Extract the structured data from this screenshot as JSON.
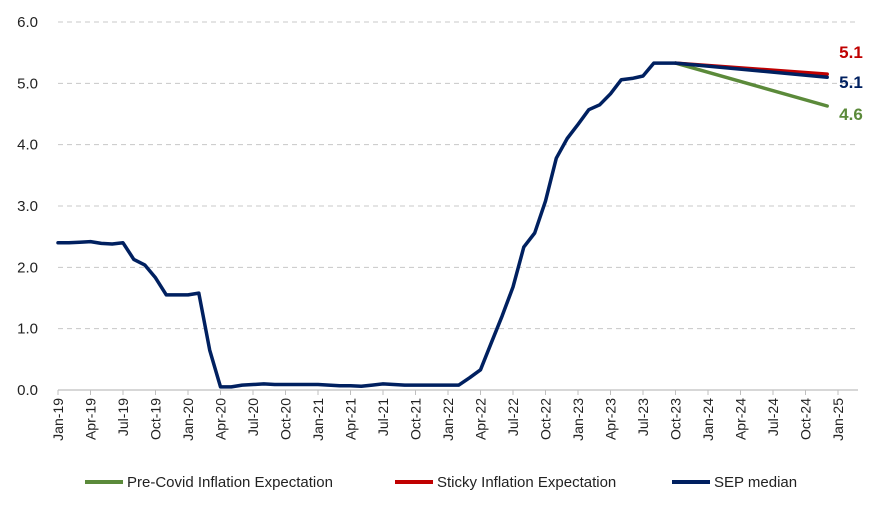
{
  "chart_data": {
    "type": "line",
    "title": "",
    "xlabel": "",
    "ylabel": "",
    "ylim": [
      0,
      6
    ],
    "yticks": [
      "0.0",
      "1.0",
      "2.0",
      "3.0",
      "4.0",
      "5.0",
      "6.0"
    ],
    "xticks": [
      "Jan-19",
      "Apr-19",
      "Jul-19",
      "Oct-19",
      "Jan-20",
      "Apr-20",
      "Jul-20",
      "Oct-20",
      "Jan-21",
      "Apr-21",
      "Jul-21",
      "Oct-21",
      "Jan-22",
      "Apr-22",
      "Jul-22",
      "Oct-22",
      "Jan-23",
      "Apr-23",
      "Jul-23",
      "Oct-23",
      "Jan-24",
      "Apr-24",
      "Jul-24",
      "Oct-24",
      "Jan-25"
    ],
    "grid": "horizontal dashed",
    "legend_position": "bottom",
    "series": [
      {
        "name": "Pre-Covid Inflation Expectation",
        "color": "#5b8a3a",
        "end_label": "4.6",
        "x": [
          "Oct-23",
          "Dec-24"
        ],
        "y": [
          5.33,
          4.63
        ]
      },
      {
        "name": "Sticky Inflation Expectation",
        "color": "#c00000",
        "end_label": "5.1",
        "x": [
          "Oct-23",
          "Dec-24"
        ],
        "y": [
          5.33,
          5.15
        ]
      },
      {
        "name": "SEP median",
        "color": "#002060",
        "end_label": "5.1",
        "x": [
          "Jan-19",
          "Feb-19",
          "Mar-19",
          "Apr-19",
          "May-19",
          "Jun-19",
          "Jul-19",
          "Aug-19",
          "Sep-19",
          "Oct-19",
          "Nov-19",
          "Dec-19",
          "Jan-20",
          "Feb-20",
          "Mar-20",
          "Apr-20",
          "May-20",
          "Jun-20",
          "Jul-20",
          "Aug-20",
          "Sep-20",
          "Oct-20",
          "Nov-20",
          "Dec-20",
          "Jan-21",
          "Feb-21",
          "Mar-21",
          "Apr-21",
          "May-21",
          "Jun-21",
          "Jul-21",
          "Aug-21",
          "Sep-21",
          "Oct-21",
          "Nov-21",
          "Dec-21",
          "Jan-22",
          "Feb-22",
          "Mar-22",
          "Apr-22",
          "May-22",
          "Jun-22",
          "Jul-22",
          "Aug-22",
          "Sep-22",
          "Oct-22",
          "Nov-22",
          "Dec-22",
          "Jan-23",
          "Feb-23",
          "Mar-23",
          "Apr-23",
          "May-23",
          "Jun-23",
          "Jul-23",
          "Aug-23",
          "Sep-23",
          "Oct-23",
          "Dec-24"
        ],
        "y": [
          2.4,
          2.4,
          2.41,
          2.42,
          2.39,
          2.38,
          2.4,
          2.13,
          2.04,
          1.83,
          1.55,
          1.55,
          1.55,
          1.58,
          0.65,
          0.05,
          0.05,
          0.08,
          0.09,
          0.1,
          0.09,
          0.09,
          0.09,
          0.09,
          0.09,
          0.08,
          0.07,
          0.07,
          0.06,
          0.08,
          0.1,
          0.09,
          0.08,
          0.08,
          0.08,
          0.08,
          0.08,
          0.08,
          0.2,
          0.33,
          0.77,
          1.21,
          1.68,
          2.33,
          2.56,
          3.08,
          3.78,
          4.1,
          4.33,
          4.57,
          4.65,
          4.83,
          5.06,
          5.08,
          5.12,
          5.33,
          5.33,
          5.33,
          5.1
        ]
      }
    ]
  }
}
